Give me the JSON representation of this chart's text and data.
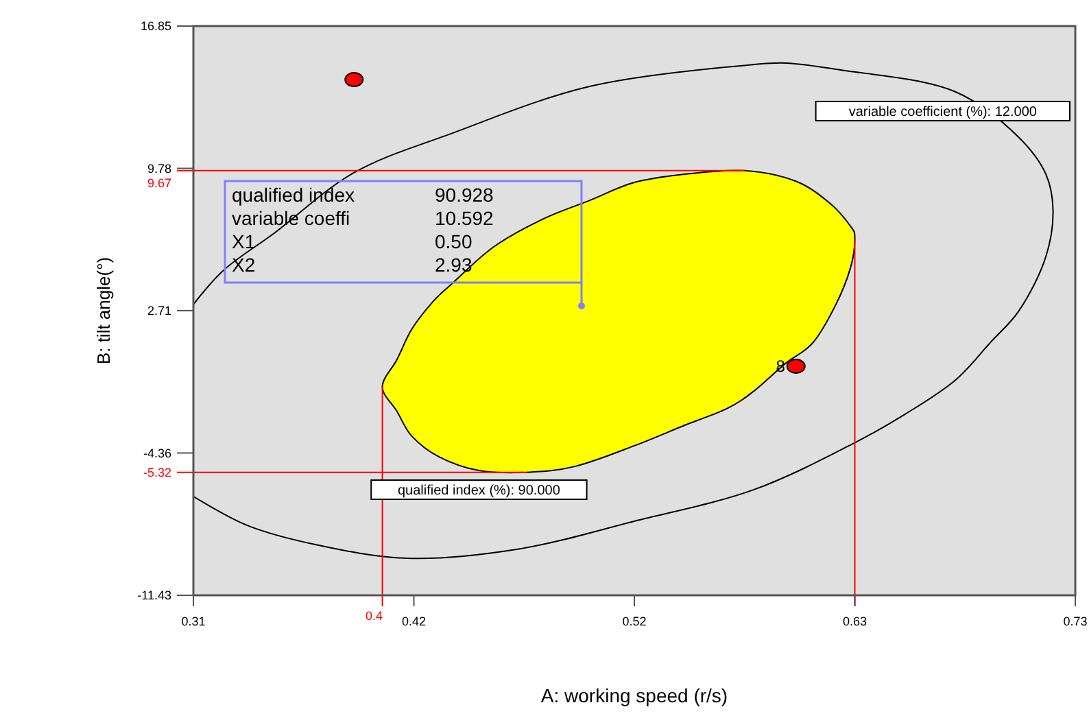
{
  "chart_data": {
    "type": "scatter",
    "xlabel": "A: working speed (r/s)",
    "ylabel": "B: tilt angle(°)",
    "xlim": [
      0.31,
      0.73
    ],
    "xticks": [
      0.31,
      {
        "value": 0.415,
        "label": "0.42"
      },
      0.52,
      {
        "value": 0.625,
        "label": "0.63"
      },
      0.73
    ],
    "ylim": [
      -11.43,
      16.85
    ],
    "yticks": [
      -11.43,
      -4.36,
      2.71,
      9.78,
      16.85
    ],
    "series": [
      {
        "type": "area",
        "name": "qualified index (%): 90.000",
        "color": "#ffff00",
        "x": [
          0.5725,
          0.5967,
          0.613,
          0.623,
          0.625,
          0.623,
          0.616,
          0.605,
          0.592,
          0.577,
          0.564,
          0.544,
          0.52,
          0.492,
          0.469,
          0.446,
          0.427,
          0.414,
          0.407,
          0.4,
          0.407,
          0.414,
          0.424,
          0.433,
          0.453,
          0.476,
          0.499,
          0.52,
          0.544
        ],
        "values": [
          9.67,
          9.15,
          8.06,
          6.9,
          6.29,
          4.86,
          3.02,
          1.11,
          0.09,
          -1.28,
          -2.16,
          -2.98,
          -4.0,
          -5.02,
          -5.32,
          -5.23,
          -4.55,
          -3.52,
          -2.3,
          -1.07,
          0.29,
          1.79,
          3.15,
          4.04,
          5.88,
          7.24,
          8.2,
          9.08,
          9.49
        ]
      },
      {
        "type": "line",
        "name": "variable coefficient (%): 12.000",
        "color": "#000000",
        "x": [
          0.31,
          0.3244,
          0.3485,
          0.3864,
          0.4334,
          0.4987,
          0.5771,
          0.5921,
          0.6182,
          0.673,
          0.703,
          0.716,
          0.7194,
          0.716,
          0.703,
          0.6894,
          0.673,
          0.649,
          0.6248,
          0.577,
          0.52,
          0.466,
          0.4119,
          0.3681,
          0.3355,
          0.31
        ],
        "values": [
          3.02,
          4.72,
          6.56,
          9.56,
          11.53,
          13.85,
          14.94,
          15.01,
          14.67,
          13.58,
          11.33,
          9.49,
          7.72,
          5.4,
          2.68,
          1.11,
          -0.73,
          -2.43,
          -3.86,
          -6.18,
          -7.75,
          -9.11,
          -9.59,
          -8.91,
          -7.95,
          -6.52
        ]
      },
      {
        "color": "#ff0000",
        "marker": "circle",
        "x": [
          0.3865,
          0.597
        ],
        "values": [
          14.19,
          -0.05
        ]
      }
    ],
    "ref_lines": [
      {
        "axis": "x",
        "value": 0.4,
        "label": "0.4",
        "color": "#ff0000"
      },
      {
        "axis": "x",
        "value": 0.625,
        "label": null,
        "color": "#ff0000"
      },
      {
        "axis": "y",
        "value": 9.67,
        "label": "9.67",
        "color": "#ff0000"
      },
      {
        "axis": "y",
        "value": -5.32,
        "label": "-5.32",
        "color": "#ff0000"
      }
    ],
    "annotations": [
      "qualified index",
      "90.928",
      "variable coeffi",
      "10.592",
      "X1",
      "0.50",
      "X2",
      "2.93",
      {
        "text": "8",
        "x": 0.597,
        "y": -0.05
      }
    ]
  }
}
